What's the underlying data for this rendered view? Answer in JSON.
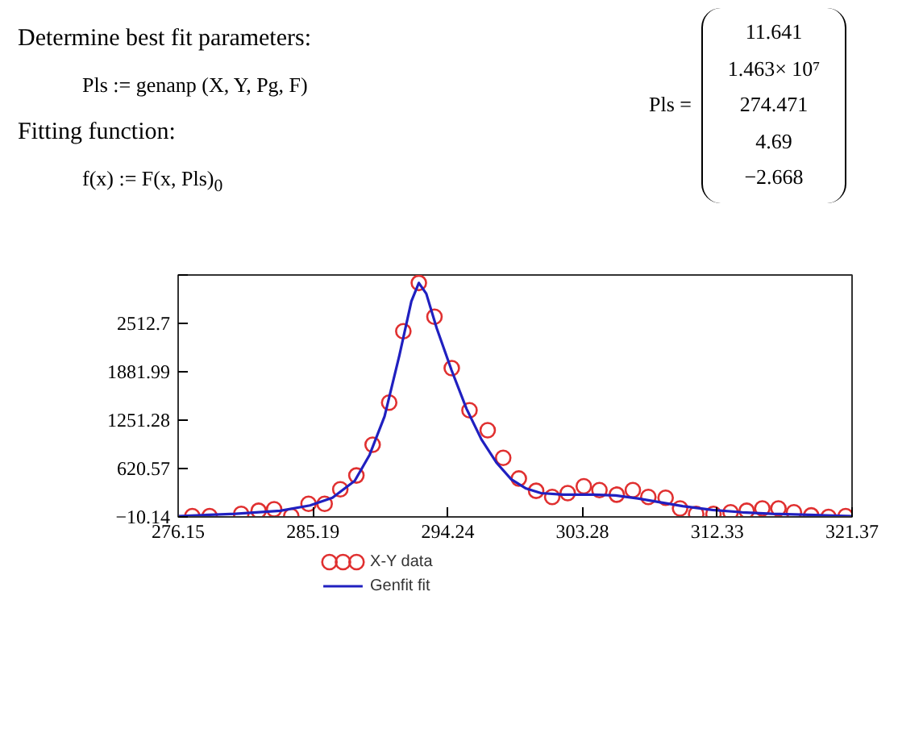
{
  "chart_data": {
    "type": "scatter",
    "annotations": [
      "Determine best fit parameters:",
      "Pls := genanp (X, Y, Pg, F)",
      "Fitting function:",
      "f(x) := F(x, Pls)$_{0}$",
      "Pls =",
      "11.641",
      "1.463× 10⁷",
      "274.471",
      "4.69",
      "−2.668"
    ],
    "xlim": [
      276.15,
      321.37
    ],
    "xticks": [
      276.15,
      285.19,
      294.24,
      303.28,
      312.33,
      321.37
    ],
    "ylim": [
      -10.14,
      3143.41
    ],
    "yticks": [
      {
        "value": -10.14,
        "label": "−10.14"
      },
      620.57,
      1251.28,
      1881.99,
      2512.7,
      {
        "value": 3143.41,
        "label": null
      }
    ],
    "grid": false,
    "legend": "bottom left",
    "series": [
      {
        "name": "X-Y data",
        "marker": "circle",
        "color": "#e03030",
        "x": [
          277.1,
          278.26,
          280.38,
          281.55,
          282.59,
          283.74,
          284.9,
          285.98,
          287.03,
          288.11,
          289.2,
          290.31,
          291.26,
          292.3,
          293.35,
          294.51,
          295.7,
          296.92,
          297.96,
          299.01,
          300.17,
          301.25,
          302.29,
          303.37,
          304.42,
          305.58,
          306.66,
          307.7,
          308.86,
          309.83,
          310.91,
          312.07,
          313.22,
          314.3,
          315.35,
          316.43,
          317.47,
          318.63,
          319.79,
          320.94
        ],
        "values": [
          0,
          0,
          30,
          70,
          90,
          0,
          160,
          160,
          350,
          530,
          930,
          1480,
          2410,
          3040,
          2600,
          1930,
          1380,
          1120,
          760,
          490,
          330,
          250,
          300,
          390,
          340,
          280,
          340,
          250,
          240,
          100,
          30,
          30,
          50,
          70,
          100,
          100,
          50,
          10,
          -10,
          0
        ]
      },
      {
        "name": "Genfit fit",
        "type": "line",
        "line_style": "solid",
        "color": "#2020c0",
        "x": [
          276.15,
          280,
          283,
          285,
          286.5,
          288,
          289,
          290,
          291,
          291.8,
          292.3,
          292.8,
          293.5,
          294.5,
          295.5,
          296.5,
          297.5,
          298.5,
          299.5,
          300.5,
          302,
          304,
          305.5,
          307,
          308.5,
          310,
          312,
          314,
          316,
          318,
          321.37
        ],
        "values": [
          0,
          30,
          70,
          140,
          240,
          460,
          800,
          1300,
          2100,
          2800,
          3040,
          2900,
          2450,
          1900,
          1400,
          1000,
          700,
          480,
          360,
          300,
          280,
          280,
          270,
          230,
          180,
          130,
          80,
          50,
          30,
          20,
          0
        ]
      }
    ]
  }
}
